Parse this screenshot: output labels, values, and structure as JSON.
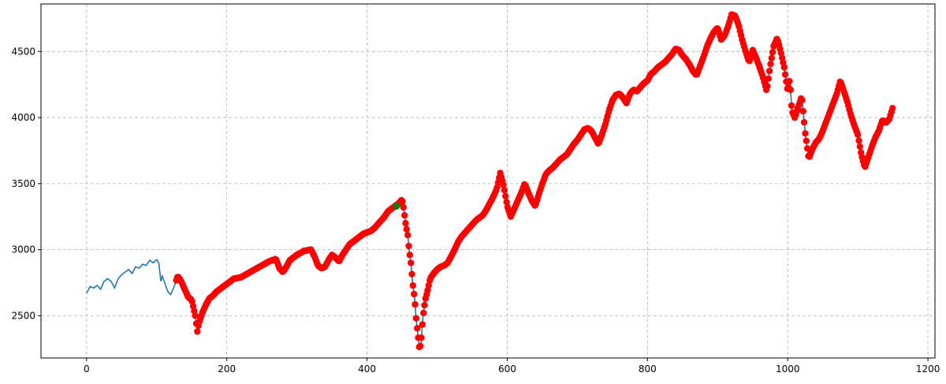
{
  "chart_data": {
    "type": "line",
    "title": "",
    "xlabel": "",
    "ylabel": "",
    "xlim": [
      -65,
      1210
    ],
    "ylim": [
      2180,
      4860
    ],
    "grid": true,
    "x_ticks": [
      0,
      200,
      400,
      600,
      800,
      1000,
      1200
    ],
    "y_ticks": [
      2500,
      3000,
      3500,
      4000,
      4500
    ],
    "x_tick_labels": [
      "0",
      "200",
      "400",
      "600",
      "800",
      "1000",
      "1200"
    ],
    "y_tick_labels": [
      "2500",
      "3000",
      "3500",
      "4000",
      "4500"
    ],
    "colors": {
      "line": "#1f77b4",
      "marker_red": "#ff0000",
      "marker_green": "#008000"
    },
    "series": [
      {
        "role": "price-line",
        "style": "line",
        "points": [
          [
            0,
            2670
          ],
          [
            5,
            2720
          ],
          [
            10,
            2710
          ],
          [
            15,
            2730
          ],
          [
            20,
            2700
          ],
          [
            25,
            2760
          ],
          [
            30,
            2780
          ],
          [
            35,
            2760
          ],
          [
            40,
            2710
          ],
          [
            45,
            2780
          ],
          [
            50,
            2810
          ],
          [
            55,
            2830
          ],
          [
            60,
            2850
          ],
          [
            65,
            2820
          ],
          [
            70,
            2870
          ],
          [
            75,
            2860
          ],
          [
            80,
            2890
          ],
          [
            85,
            2880
          ],
          [
            90,
            2920
          ],
          [
            95,
            2900
          ],
          [
            100,
            2925
          ],
          [
            103,
            2900
          ],
          [
            106,
            2760
          ],
          [
            108,
            2800
          ],
          [
            112,
            2740
          ],
          [
            116,
            2680
          ],
          [
            120,
            2660
          ],
          [
            125,
            2720
          ],
          [
            130,
            2800
          ],
          [
            135,
            2760
          ],
          [
            140,
            2700
          ],
          [
            145,
            2640
          ],
          [
            150,
            2620
          ],
          [
            155,
            2500
          ],
          [
            158,
            2380
          ],
          [
            160,
            2440
          ],
          [
            165,
            2520
          ],
          [
            170,
            2580
          ],
          [
            175,
            2630
          ],
          [
            180,
            2650
          ],
          [
            185,
            2680
          ],
          [
            190,
            2700
          ],
          [
            195,
            2720
          ],
          [
            200,
            2740
          ],
          [
            210,
            2780
          ],
          [
            220,
            2790
          ],
          [
            230,
            2820
          ],
          [
            240,
            2850
          ],
          [
            250,
            2880
          ],
          [
            260,
            2910
          ],
          [
            270,
            2930
          ],
          [
            275,
            2860
          ],
          [
            280,
            2830
          ],
          [
            285,
            2870
          ],
          [
            290,
            2920
          ],
          [
            300,
            2960
          ],
          [
            310,
            2990
          ],
          [
            320,
            3000
          ],
          [
            325,
            2950
          ],
          [
            330,
            2880
          ],
          [
            335,
            2860
          ],
          [
            340,
            2870
          ],
          [
            345,
            2920
          ],
          [
            350,
            2960
          ],
          [
            355,
            2940
          ],
          [
            360,
            2910
          ],
          [
            365,
            2960
          ],
          [
            370,
            3000
          ],
          [
            375,
            3040
          ],
          [
            380,
            3060
          ],
          [
            385,
            3080
          ],
          [
            390,
            3100
          ],
          [
            395,
            3120
          ],
          [
            400,
            3130
          ],
          [
            405,
            3140
          ],
          [
            410,
            3160
          ],
          [
            415,
            3190
          ],
          [
            420,
            3220
          ],
          [
            425,
            3250
          ],
          [
            430,
            3290
          ],
          [
            435,
            3310
          ],
          [
            440,
            3330
          ],
          [
            445,
            3350
          ],
          [
            450,
            3380
          ],
          [
            452,
            3320
          ],
          [
            455,
            3200
          ],
          [
            458,
            3110
          ],
          [
            460,
            3000
          ],
          [
            463,
            2880
          ],
          [
            465,
            2750
          ],
          [
            468,
            2620
          ],
          [
            470,
            2480
          ],
          [
            472,
            2380
          ],
          [
            475,
            2240
          ],
          [
            477,
            2300
          ],
          [
            480,
            2500
          ],
          [
            483,
            2620
          ],
          [
            486,
            2680
          ],
          [
            490,
            2780
          ],
          [
            495,
            2820
          ],
          [
            500,
            2850
          ],
          [
            505,
            2870
          ],
          [
            510,
            2880
          ],
          [
            515,
            2900
          ],
          [
            520,
            2950
          ],
          [
            525,
            3000
          ],
          [
            530,
            3060
          ],
          [
            535,
            3100
          ],
          [
            540,
            3130
          ],
          [
            545,
            3160
          ],
          [
            550,
            3190
          ],
          [
            555,
            3220
          ],
          [
            560,
            3240
          ],
          [
            565,
            3260
          ],
          [
            570,
            3300
          ],
          [
            575,
            3350
          ],
          [
            580,
            3400
          ],
          [
            585,
            3460
          ],
          [
            590,
            3580
          ],
          [
            595,
            3480
          ],
          [
            600,
            3330
          ],
          [
            605,
            3250
          ],
          [
            610,
            3310
          ],
          [
            615,
            3370
          ],
          [
            620,
            3430
          ],
          [
            625,
            3500
          ],
          [
            630,
            3430
          ],
          [
            635,
            3370
          ],
          [
            640,
            3330
          ],
          [
            645,
            3420
          ],
          [
            650,
            3500
          ],
          [
            655,
            3570
          ],
          [
            660,
            3600
          ],
          [
            665,
            3620
          ],
          [
            670,
            3650
          ],
          [
            675,
            3680
          ],
          [
            680,
            3700
          ],
          [
            685,
            3720
          ],
          [
            690,
            3760
          ],
          [
            695,
            3800
          ],
          [
            700,
            3830
          ],
          [
            705,
            3870
          ],
          [
            710,
            3910
          ],
          [
            715,
            3920
          ],
          [
            720,
            3900
          ],
          [
            725,
            3850
          ],
          [
            730,
            3800
          ],
          [
            735,
            3870
          ],
          [
            740,
            3950
          ],
          [
            745,
            4050
          ],
          [
            750,
            4130
          ],
          [
            755,
            4170
          ],
          [
            760,
            4180
          ],
          [
            765,
            4150
          ],
          [
            770,
            4110
          ],
          [
            775,
            4180
          ],
          [
            780,
            4210
          ],
          [
            785,
            4200
          ],
          [
            790,
            4230
          ],
          [
            795,
            4260
          ],
          [
            800,
            4280
          ],
          [
            805,
            4330
          ],
          [
            810,
            4350
          ],
          [
            815,
            4380
          ],
          [
            820,
            4400
          ],
          [
            825,
            4420
          ],
          [
            830,
            4450
          ],
          [
            835,
            4480
          ],
          [
            840,
            4520
          ],
          [
            845,
            4510
          ],
          [
            850,
            4470
          ],
          [
            855,
            4440
          ],
          [
            860,
            4400
          ],
          [
            865,
            4350
          ],
          [
            870,
            4320
          ],
          [
            875,
            4390
          ],
          [
            880,
            4460
          ],
          [
            885,
            4540
          ],
          [
            890,
            4600
          ],
          [
            895,
            4650
          ],
          [
            900,
            4680
          ],
          [
            905,
            4590
          ],
          [
            910,
            4620
          ],
          [
            915,
            4690
          ],
          [
            920,
            4780
          ],
          [
            925,
            4770
          ],
          [
            930,
            4700
          ],
          [
            935,
            4590
          ],
          [
            940,
            4500
          ],
          [
            945,
            4420
          ],
          [
            950,
            4510
          ],
          [
            955,
            4450
          ],
          [
            960,
            4380
          ],
          [
            965,
            4300
          ],
          [
            970,
            4200
          ],
          [
            975,
            4390
          ],
          [
            980,
            4540
          ],
          [
            985,
            4600
          ],
          [
            990,
            4500
          ],
          [
            995,
            4380
          ],
          [
            1000,
            4200
          ],
          [
            1003,
            4290
          ],
          [
            1006,
            4050
          ],
          [
            1010,
            4000
          ],
          [
            1015,
            4080
          ],
          [
            1020,
            4160
          ],
          [
            1025,
            3880
          ],
          [
            1030,
            3690
          ],
          [
            1035,
            3760
          ],
          [
            1040,
            3810
          ],
          [
            1045,
            3840
          ],
          [
            1050,
            3900
          ],
          [
            1055,
            3970
          ],
          [
            1060,
            4040
          ],
          [
            1065,
            4110
          ],
          [
            1070,
            4180
          ],
          [
            1075,
            4280
          ],
          [
            1080,
            4200
          ],
          [
            1085,
            4120
          ],
          [
            1090,
            4020
          ],
          [
            1095,
            3940
          ],
          [
            1100,
            3870
          ],
          [
            1105,
            3720
          ],
          [
            1110,
            3620
          ],
          [
            1115,
            3700
          ],
          [
            1120,
            3780
          ],
          [
            1125,
            3850
          ],
          [
            1130,
            3900
          ],
          [
            1135,
            3980
          ],
          [
            1140,
            3960
          ],
          [
            1145,
            3990
          ],
          [
            1150,
            4080
          ]
        ]
      },
      {
        "role": "red-markers",
        "style": "markers",
        "x_from": 128,
        "x_to": 1150
      },
      {
        "role": "green-marker",
        "style": "markers",
        "points": [
          [
            442,
            3330
          ]
        ]
      }
    ]
  }
}
